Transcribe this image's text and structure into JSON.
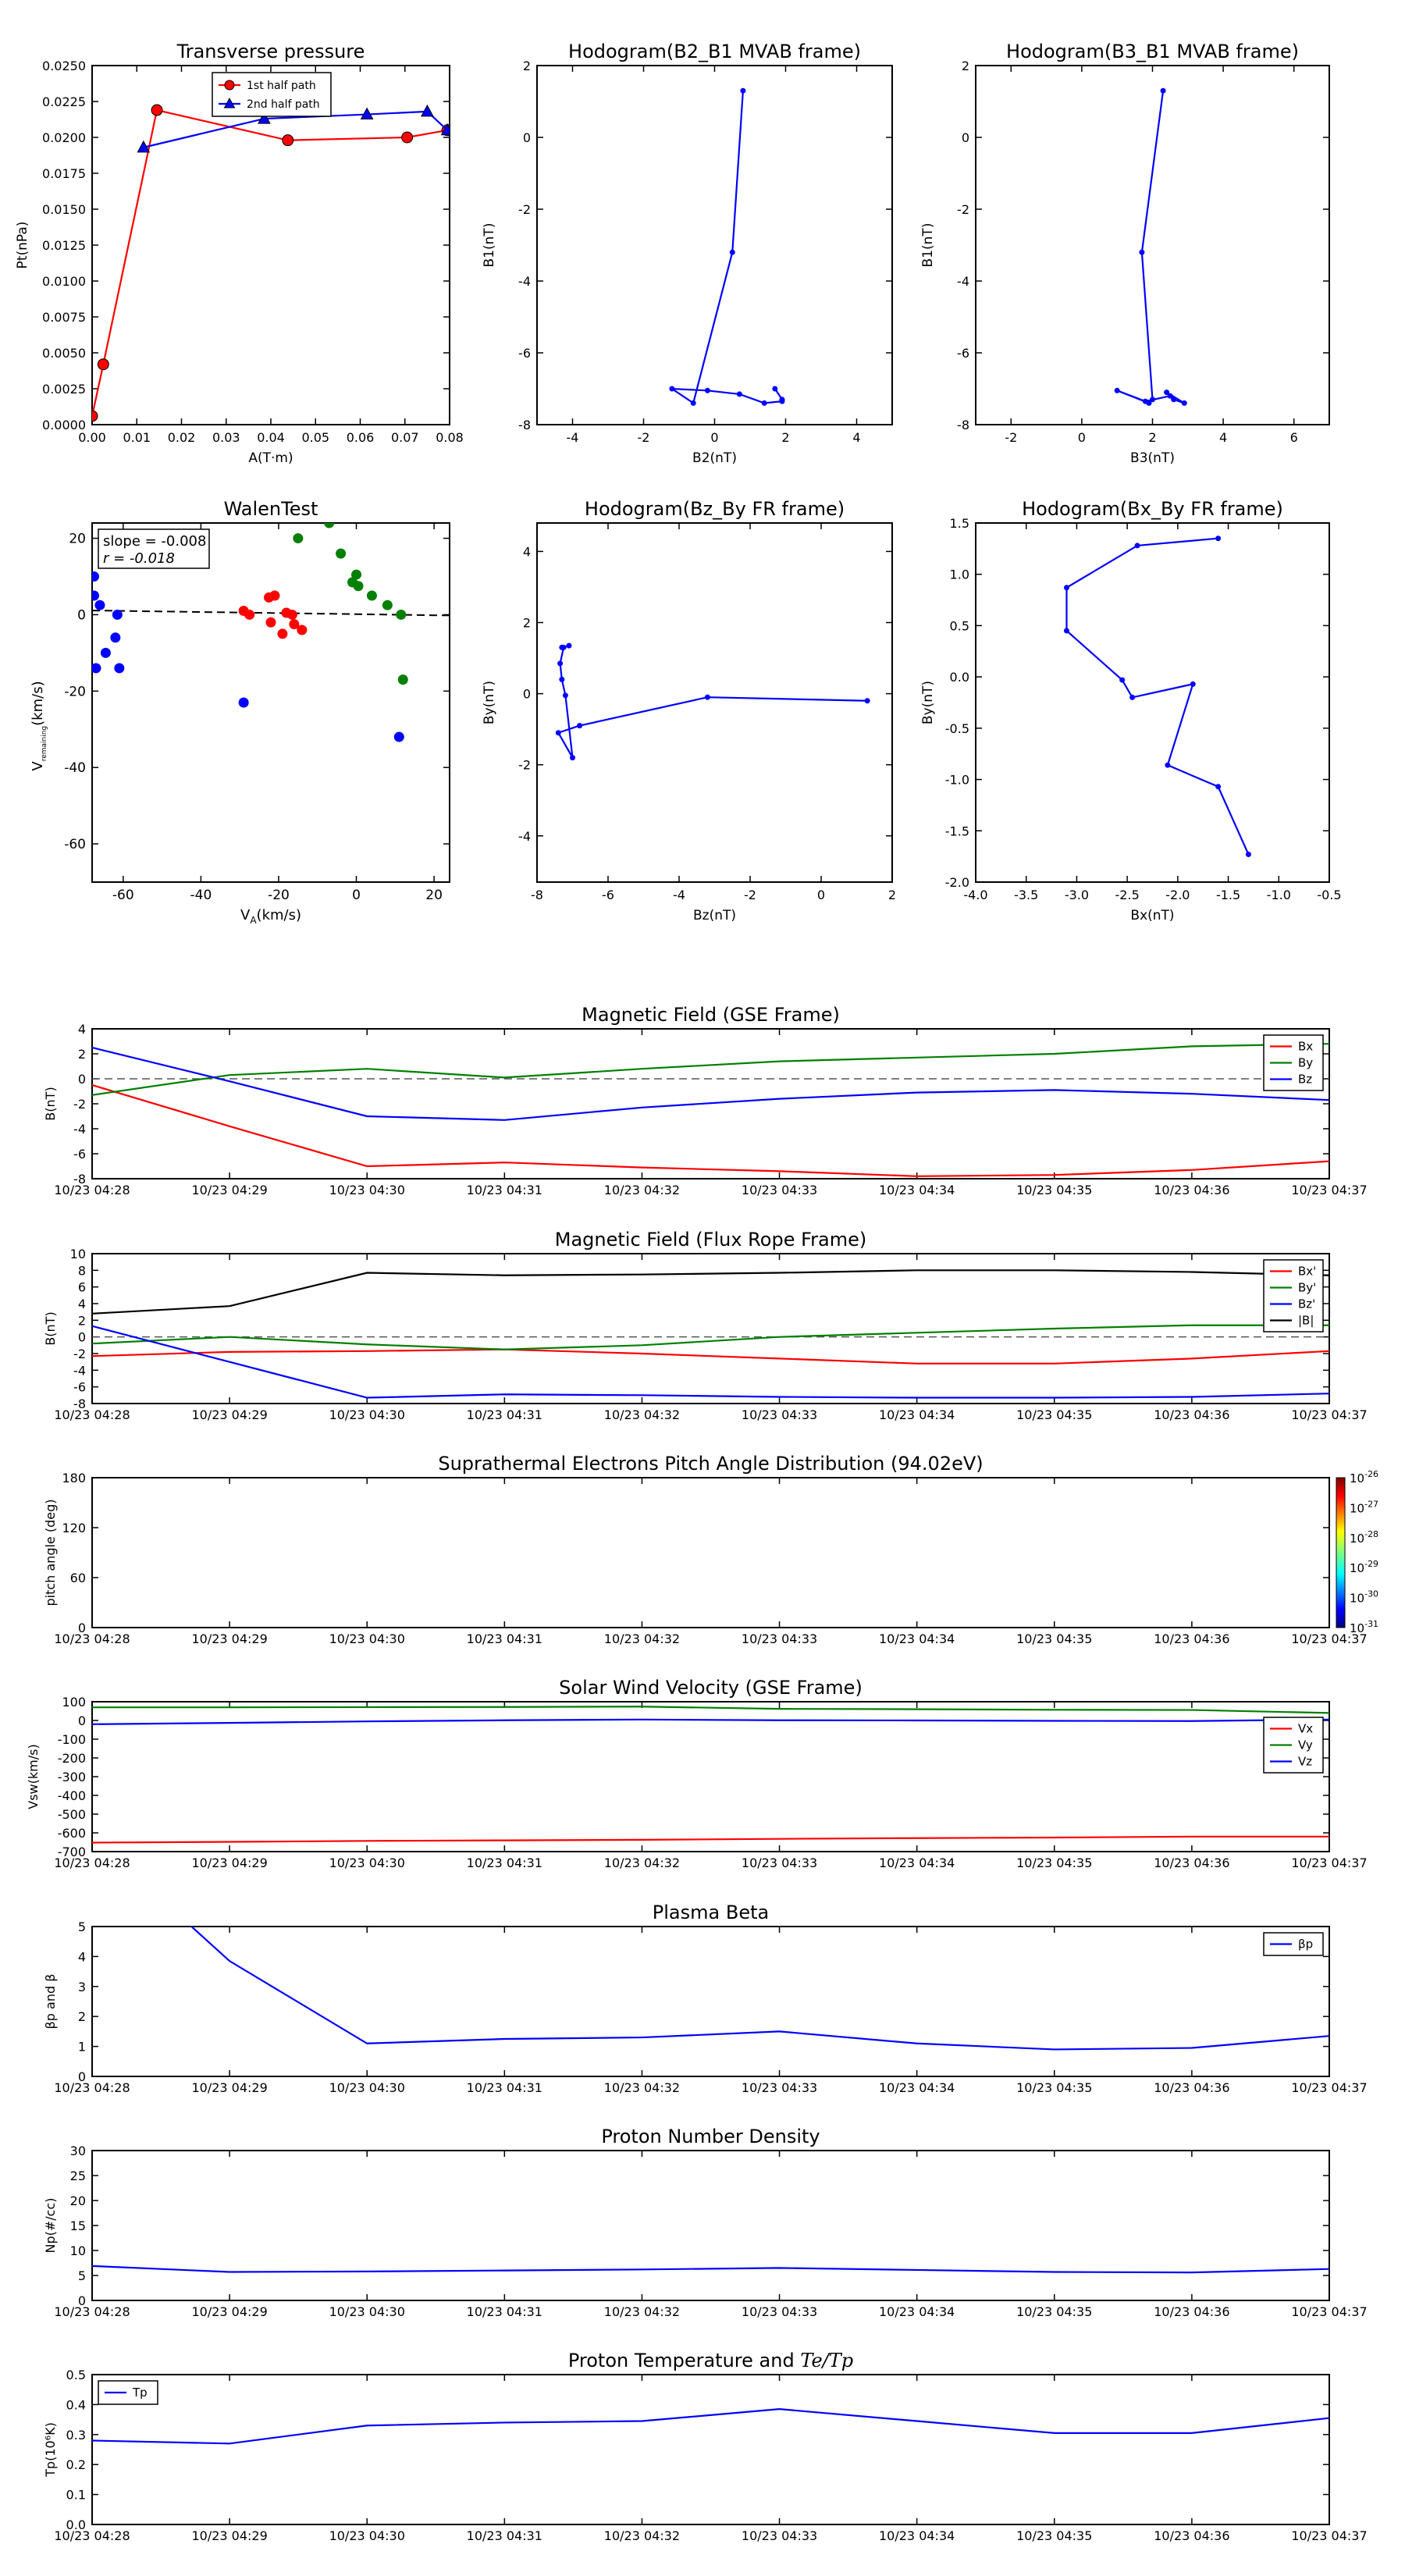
{
  "chart_data": [
    {
      "id": "tp",
      "type": "line",
      "title": "Transverse pressure",
      "xlabel": "A(T·m)",
      "ylabel": "Pt(nPa)",
      "xlim": [
        0,
        0.08
      ],
      "ylim": [
        0,
        0.025
      ],
      "xticks": [
        0,
        0.01,
        0.02,
        0.03,
        0.04,
        0.05,
        0.06,
        0.07,
        0.08
      ],
      "xticklabels": [
        "0.00",
        "0.01",
        "0.02",
        "0.03",
        "0.04",
        "0.05",
        "0.06",
        "0.07",
        "0.08"
      ],
      "yticks": [
        0,
        0.0025,
        0.005,
        0.0075,
        0.01,
        0.0125,
        0.015,
        0.0175,
        0.02,
        0.0225,
        0.025
      ],
      "yticklabels": [
        "0.0000",
        "0.0025",
        "0.0050",
        "0.0075",
        "0.0100",
        "0.0125",
        "0.0150",
        "0.0175",
        "0.0200",
        "0.0225",
        "0.0250"
      ],
      "legend": "top-center",
      "series": [
        {
          "name": "1st half path",
          "color": "#ff0000",
          "marker": "circle",
          "x": [
            0.0,
            0.0025,
            0.0145,
            0.0438,
            0.0705,
            0.0795
          ],
          "y": [
            0.0006,
            0.0042,
            0.0219,
            0.0198,
            0.02,
            0.0205
          ]
        },
        {
          "name": "2nd half path",
          "color": "#0000ff",
          "marker": "triangle",
          "x": [
            0.0795,
            0.075,
            0.0615,
            0.0385,
            0.0115
          ],
          "y": [
            0.0205,
            0.0218,
            0.0216,
            0.0213,
            0.0193
          ]
        }
      ]
    },
    {
      "id": "h21",
      "type": "line",
      "title": "Hodogram(B2_B1 MVAB frame)",
      "xlabel": "B2(nT)",
      "ylabel": "B1(nT)",
      "xlim": [
        -5,
        5
      ],
      "ylim": [
        -8,
        2
      ],
      "xticks": [
        -4,
        -2,
        0,
        2,
        4
      ],
      "yticks": [
        -8,
        -6,
        -4,
        -2,
        0,
        2
      ],
      "series": [
        {
          "color": "#0000ff",
          "marker": "dot",
          "x": [
            0.8,
            0.5,
            -0.6,
            -1.2,
            -0.2,
            0.7,
            1.4,
            1.9,
            1.9,
            1.7
          ],
          "y": [
            1.3,
            -3.2,
            -7.4,
            -7.0,
            -7.05,
            -7.15,
            -7.4,
            -7.35,
            -7.3,
            -7.0
          ]
        }
      ]
    },
    {
      "id": "h31",
      "type": "line",
      "title": "Hodogram(B3_B1 MVAB frame)",
      "xlabel": "B3(nT)",
      "ylabel": "B1(nT)",
      "xlim": [
        -3,
        7
      ],
      "ylim": [
        -8,
        2
      ],
      "xticks": [
        -2,
        0,
        2,
        4,
        6
      ],
      "yticks": [
        -8,
        -6,
        -4,
        -2,
        0,
        2
      ],
      "series": [
        {
          "color": "#0000ff",
          "marker": "dot",
          "x": [
            2.3,
            1.7,
            2.0,
            1.9,
            1.0,
            1.8,
            2.5,
            2.6,
            2.9,
            2.4
          ],
          "y": [
            1.3,
            -3.2,
            -7.3,
            -7.4,
            -7.05,
            -7.35,
            -7.2,
            -7.3,
            -7.4,
            -7.1
          ]
        }
      ]
    },
    {
      "id": "walen",
      "type": "scatter",
      "title": "WalenTest",
      "xlabel": "V",
      "xlabel_sub": "A",
      "xlabel_tail": "(km/s)",
      "ylabel": "V",
      "ylabel_sub": "remaining",
      "ylabel_tail": "(km/s)",
      "xlim": [
        -68,
        24
      ],
      "ylim": [
        -70,
        24
      ],
      "xticks": [
        -60,
        -40,
        -20,
        0,
        20
      ],
      "yticks": [
        -60,
        -40,
        -20,
        0,
        20
      ],
      "stats": [
        "slope = -0.008",
        "r = -0.018"
      ],
      "fit_line": {
        "x": [
          -68,
          24
        ],
        "y": [
          1.1,
          -0.2
        ]
      },
      "series": [
        {
          "color": "#0000ff",
          "x": [
            -67.5,
            -67.5,
            -66,
            -64.5,
            -62,
            -61.5,
            -61,
            -67,
            -29,
            11
          ],
          "y": [
            10,
            5,
            2.5,
            -10,
            -6,
            0,
            -14,
            -14,
            -23,
            -32
          ]
        },
        {
          "color": "#ff0000",
          "x": [
            -29,
            -27.5,
            -22.5,
            -21,
            -22,
            -19,
            -18,
            -16,
            -14,
            -16.5
          ],
          "y": [
            1,
            0,
            4.5,
            5,
            -2,
            -5,
            0.5,
            -2.5,
            -4,
            0
          ]
        },
        {
          "color": "#008000",
          "x": [
            -15,
            -7,
            -4,
            -1,
            0,
            0.5,
            4,
            8,
            11.5,
            12
          ],
          "y": [
            20,
            24,
            16,
            8.5,
            10.5,
            7.5,
            5,
            2.5,
            0,
            -17
          ]
        }
      ]
    },
    {
      "id": "hzy",
      "type": "line",
      "title": "Hodogram(Bz_By FR frame)",
      "xlabel": "Bz(nT)",
      "ylabel": "By(nT)",
      "xlim": [
        -8,
        2
      ],
      "ylim": [
        -5.3,
        4.8
      ],
      "xticks": [
        -8,
        -6,
        -4,
        -2,
        0,
        2
      ],
      "yticks": [
        -4,
        -2,
        0,
        2,
        4
      ],
      "series": [
        {
          "color": "#0000ff",
          "marker": "dot",
          "x": [
            1.3,
            -3.2,
            -6.8,
            -7.4,
            -7.0,
            -7.2,
            -7.3,
            -7.35,
            -7.25,
            -7.1,
            -7.3
          ],
          "y": [
            -0.2,
            -0.1,
            -0.9,
            -1.1,
            -1.8,
            -0.05,
            0.4,
            0.85,
            1.3,
            1.35,
            1.3
          ]
        }
      ]
    },
    {
      "id": "hxy",
      "type": "line",
      "title": "Hodogram(Bx_By FR frame)",
      "xlabel": "Bx(nT)",
      "ylabel": "By(nT)",
      "xlim": [
        -4.0,
        -0.5
      ],
      "ylim": [
        -2.0,
        1.5
      ],
      "xticks": [
        -4.0,
        -3.5,
        -3.0,
        -2.5,
        -2.0,
        -1.5,
        -1.0,
        -0.5
      ],
      "xticklabels": [
        "-4.0",
        "-3.5",
        "-3.0",
        "-2.5",
        "-2.0",
        "-1.5",
        "-1.0",
        "-0.5"
      ],
      "yticks": [
        -2.0,
        -1.5,
        -1.0,
        -0.5,
        0.0,
        0.5,
        1.0,
        1.5
      ],
      "yticklabels": [
        "-2.0",
        "-1.5",
        "-1.0",
        "-0.5",
        "0.0",
        "0.5",
        "1.0",
        "1.5"
      ],
      "series": [
        {
          "color": "#0000ff",
          "marker": "dot",
          "x": [
            -1.6,
            -2.4,
            -3.1,
            -3.1,
            -2.55,
            -2.45,
            -1.85,
            -2.1,
            -1.6,
            -1.3
          ],
          "y": [
            1.35,
            1.28,
            0.87,
            0.45,
            -0.03,
            -0.2,
            -0.07,
            -0.86,
            -1.07,
            -1.73
          ]
        }
      ]
    },
    {
      "id": "bgse",
      "type": "line",
      "title": "Magnetic Field (GSE Frame)",
      "ylabel": "B(nT)",
      "ylim": [
        -8,
        4
      ],
      "yticks": [
        -8,
        -6,
        -4,
        -2,
        0,
        2,
        4
      ],
      "zero_line": true,
      "legend": "top-right",
      "series": [
        {
          "name": "Bx",
          "color": "#ff0000",
          "y": [
            -0.5,
            -3.8,
            -7.0,
            -6.7,
            -7.1,
            -7.4,
            -7.8,
            -7.7,
            -7.3,
            -6.6
          ]
        },
        {
          "name": "By",
          "color": "#008000",
          "y": [
            -1.3,
            0.3,
            0.8,
            0.1,
            0.8,
            1.4,
            1.7,
            2.0,
            2.6,
            2.8
          ]
        },
        {
          "name": "Bz",
          "color": "#0000ff",
          "y": [
            2.5,
            -0.2,
            -3.0,
            -3.3,
            -2.3,
            -1.6,
            -1.1,
            -0.9,
            -1.2,
            -1.7
          ]
        }
      ]
    },
    {
      "id": "bfr",
      "type": "line",
      "title": "Magnetic Field (Flux Rope Frame)",
      "ylabel": "B(nT)",
      "ylim": [
        -8,
        10
      ],
      "yticks": [
        -8,
        -6,
        -4,
        -2,
        0,
        2,
        4,
        6,
        8,
        10
      ],
      "zero_line": true,
      "legend": "top-right",
      "series": [
        {
          "name": "Bx'",
          "color": "#ff0000",
          "y": [
            -2.3,
            -1.8,
            -1.7,
            -1.5,
            -2.0,
            -2.6,
            -3.2,
            -3.2,
            -2.6,
            -1.7
          ]
        },
        {
          "name": "By'",
          "color": "#008000",
          "y": [
            -0.8,
            0.0,
            -0.9,
            -1.5,
            -1.0,
            0.0,
            0.5,
            1.0,
            1.4,
            1.4
          ]
        },
        {
          "name": "Bz'",
          "color": "#0000ff",
          "y": [
            1.3,
            -3.0,
            -7.3,
            -6.9,
            -7.0,
            -7.2,
            -7.3,
            -7.3,
            -7.2,
            -6.8
          ]
        },
        {
          "name": "|B|",
          "color": "#000000",
          "y": [
            2.8,
            3.7,
            7.7,
            7.4,
            7.5,
            7.7,
            8.0,
            8.0,
            7.8,
            7.4
          ]
        }
      ]
    },
    {
      "id": "pad",
      "type": "heatmap",
      "title": "Suprathermal Electrons Pitch Angle Distribution (94.02eV)",
      "ylabel": "pitch angle (deg)",
      "ylim": [
        0,
        180
      ],
      "yticks": [
        0,
        60,
        120,
        180
      ],
      "colorbar_ticks": [
        "10",
        "10",
        "10",
        "10",
        "10",
        "10"
      ],
      "colorbar_exps": [
        "-26",
        "-27",
        "-28",
        "-29",
        "-30",
        "-31"
      ]
    },
    {
      "id": "vsw",
      "type": "line",
      "title": "Solar Wind Velocity (GSE Frame)",
      "ylabel": "Vsw(km/s)",
      "ylim": [
        -700,
        100
      ],
      "yticks": [
        -700,
        -600,
        -500,
        -400,
        -300,
        -200,
        -100,
        0,
        100
      ],
      "legend": "right",
      "series": [
        {
          "name": "Vx",
          "color": "#ff0000",
          "y": [
            -652,
            -648,
            -643,
            -640,
            -637,
            -632,
            -628,
            -625,
            -620,
            -620
          ]
        },
        {
          "name": "Vy",
          "color": "#008000",
          "y": [
            70,
            70,
            71,
            72,
            74,
            62,
            60,
            57,
            56,
            40
          ]
        },
        {
          "name": "Vz",
          "color": "#0000ff",
          "y": [
            -20,
            -13,
            -5,
            1,
            5,
            1,
            0,
            -2,
            -3,
            5
          ]
        }
      ]
    },
    {
      "id": "beta",
      "type": "line",
      "title": "Plasma Beta",
      "ylabel": "βp and β",
      "ylim": [
        0,
        5
      ],
      "yticks": [
        0,
        1,
        2,
        3,
        4,
        5
      ],
      "legend": "top-right",
      "series": [
        {
          "name": "βp",
          "color": "#0000ff",
          "y": [
            8.0,
            3.85,
            1.1,
            1.25,
            1.3,
            1.5,
            1.1,
            0.9,
            0.95,
            1.35
          ]
        }
      ]
    },
    {
      "id": "np",
      "type": "line",
      "title": "Proton Number Density",
      "ylabel": "Np(#/cc)",
      "ylim": [
        0,
        30
      ],
      "yticks": [
        0,
        5,
        10,
        15,
        20,
        25,
        30
      ],
      "series": [
        {
          "color": "#0000ff",
          "y": [
            6.9,
            5.7,
            5.8,
            6.0,
            6.2,
            6.5,
            6.1,
            5.7,
            5.6,
            6.3
          ]
        }
      ]
    },
    {
      "id": "tpr",
      "type": "line",
      "title": "Proton Temperature and Te/Tp",
      "title_main": "Proton Temperature and ",
      "title_math": "Te/Tp",
      "ylabel": "Tp(10⁶K)",
      "ylim": [
        0,
        0.5
      ],
      "yticks": [
        0,
        0.1,
        0.2,
        0.3,
        0.4,
        0.5
      ],
      "yticklabels": [
        "0.0",
        "0.1",
        "0.2",
        "0.3",
        "0.4",
        "0.5"
      ],
      "legend": "top-left",
      "series": [
        {
          "name": "Tp",
          "color": "#0000ff",
          "y": [
            0.28,
            0.27,
            0.33,
            0.34,
            0.345,
            0.385,
            0.345,
            0.305,
            0.305,
            0.355
          ]
        }
      ]
    }
  ],
  "time_axis": {
    "ticks": [
      "10/23 04:28",
      "10/23 04:29",
      "10/23 04:30",
      "10/23 04:31",
      "10/23 04:32",
      "10/23 04:33",
      "10/23 04:34",
      "10/23 04:35",
      "10/23 04:36",
      "10/23 04:37"
    ]
  }
}
